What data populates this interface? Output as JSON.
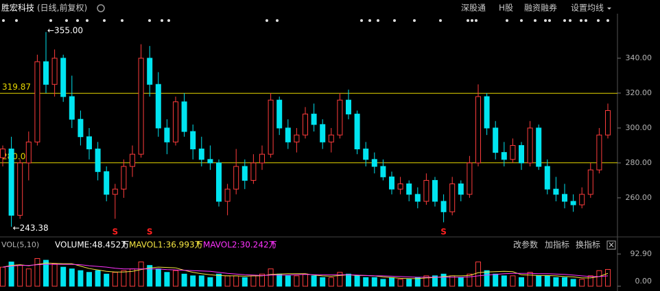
{
  "chart_data": {
    "type": "candlestick",
    "title": "胜宏科技",
    "subtitle": "(日线,前复权)",
    "menu": [
      "深股通",
      "H股",
      "融资融券",
      "设置均线"
    ],
    "open": [
      283,
      288,
      250,
      280,
      292,
      338,
      325,
      340,
      318,
      305,
      295,
      288,
      275,
      262,
      265,
      278,
      285,
      340,
      325,
      300,
      292,
      315,
      298,
      288,
      282,
      280,
      258,
      265,
      278,
      270,
      280,
      285,
      316,
      300,
      292,
      296,
      308,
      302,
      292,
      296,
      316,
      308,
      288,
      282,
      278,
      272,
      265,
      268,
      262,
      258,
      270,
      258,
      252,
      268,
      262,
      280,
      318,
      300,
      286,
      282,
      290,
      280,
      300,
      278,
      265,
      262,
      258,
      256,
      262,
      276,
      296
    ],
    "high": [
      290,
      295,
      282,
      298,
      342,
      355,
      345,
      342,
      330,
      310,
      300,
      292,
      278,
      268,
      282,
      290,
      348,
      347,
      332,
      305,
      318,
      320,
      302,
      295,
      290,
      282,
      268,
      288,
      282,
      285,
      290,
      320,
      318,
      305,
      300,
      312,
      314,
      305,
      300,
      320,
      322,
      310,
      292,
      286,
      282,
      275,
      272,
      270,
      266,
      274,
      272,
      262,
      272,
      270,
      284,
      325,
      320,
      304,
      292,
      294,
      292,
      304,
      302,
      282,
      272,
      268,
      262,
      266,
      280,
      300,
      314
    ],
    "low": [
      278,
      243.38,
      248,
      270,
      290,
      320,
      318,
      315,
      300,
      290,
      282,
      270,
      258,
      248,
      260,
      272,
      283,
      318,
      295,
      285,
      290,
      295,
      282,
      278,
      276,
      255,
      250,
      262,
      265,
      268,
      276,
      283,
      296,
      288,
      286,
      294,
      298,
      288,
      286,
      294,
      305,
      285,
      278,
      274,
      270,
      262,
      262,
      258,
      254,
      256,
      255,
      246,
      250,
      258,
      260,
      278,
      296,
      282,
      278,
      280,
      276,
      278,
      276,
      262,
      258,
      254,
      252,
      254,
      260,
      274,
      294
    ],
    "close": [
      288,
      250,
      280,
      292,
      338,
      325,
      340,
      318,
      305,
      295,
      288,
      275,
      262,
      265,
      278,
      285,
      340,
      325,
      300,
      292,
      315,
      298,
      288,
      282,
      280,
      258,
      265,
      278,
      270,
      280,
      285,
      316,
      300,
      292,
      296,
      308,
      302,
      292,
      296,
      316,
      308,
      288,
      282,
      278,
      272,
      265,
      268,
      262,
      258,
      270,
      258,
      252,
      268,
      262,
      280,
      318,
      300,
      286,
      282,
      290,
      280,
      300,
      278,
      265,
      262,
      258,
      256,
      262,
      276,
      296,
      310
    ],
    "volume": [
      55,
      70,
      60,
      50,
      80,
      75,
      65,
      55,
      50,
      45,
      40,
      45,
      35,
      40,
      45,
      50,
      70,
      60,
      50,
      40,
      45,
      35,
      30,
      30,
      25,
      35,
      30,
      30,
      25,
      30,
      35,
      50,
      35,
      30,
      30,
      35,
      30,
      25,
      25,
      40,
      35,
      30,
      25,
      25,
      20,
      25,
      20,
      20,
      25,
      30,
      30,
      35,
      30,
      25,
      35,
      70,
      45,
      35,
      30,
      30,
      25,
      40,
      30,
      30,
      25,
      25,
      20,
      20,
      30,
      45,
      48.452
    ],
    "mavol1": [
      55,
      60,
      62,
      59,
      63,
      67,
      66,
      65,
      65,
      58,
      51,
      47,
      43,
      41,
      41,
      43,
      48,
      53,
      55,
      54,
      53,
      46,
      40,
      36,
      33,
      31,
      30,
      30,
      29,
      30,
      30,
      34,
      35,
      36,
      36,
      36,
      32,
      30,
      29,
      31,
      33,
      31,
      31,
      30,
      27,
      25,
      23,
      22,
      22,
      24,
      25,
      28,
      30,
      30,
      31,
      39,
      41,
      42,
      43,
      42,
      33,
      32,
      31,
      31,
      30,
      28,
      27,
      24,
      24,
      28,
      37
    ],
    "mavol2": [
      55,
      58,
      60,
      60,
      62,
      63,
      63,
      63,
      63,
      62,
      59,
      57,
      55,
      52,
      50,
      50,
      50,
      50,
      50,
      48,
      47,
      46,
      45,
      44,
      43,
      40,
      37,
      35,
      33,
      32,
      31,
      32,
      32,
      32,
      33,
      34,
      33,
      33,
      33,
      33,
      33,
      32,
      31,
      30,
      30,
      29,
      28,
      27,
      26,
      26,
      26,
      26,
      26,
      26,
      27,
      30,
      32,
      34,
      36,
      37,
      37,
      37,
      36,
      36,
      35,
      34,
      32,
      30,
      28,
      28,
      30
    ],
    "up_color": "#ff3c3c",
    "down_color": "#00e4f0",
    "mavol1_color": "#f5e642",
    "mavol2_color": "#ff33ff",
    "ylim": [
      238,
      365.5
    ],
    "yticks": [
      {
        "value": 260,
        "label": "260.00"
      },
      {
        "value": 280,
        "label": "280.00"
      },
      {
        "value": 300,
        "label": "300.00"
      },
      {
        "value": 320,
        "label": "320.00"
      },
      {
        "value": 340,
        "label": "340.00"
      }
    ],
    "levels": [
      {
        "value": 319.87,
        "label": "319.87"
      },
      {
        "value": 280.06,
        "label": "280.06"
      }
    ],
    "high_label": "←355.00",
    "low_label": "←243.38",
    "signal_label": "S",
    "signals": [
      13,
      17,
      51
    ],
    "volume_panel": {
      "indicator": "VOL(5,10)",
      "volume": "VOLUME:48.452万",
      "mavol1": "MAVOL1:36.993万",
      "mavol2": "MAVOL2:30.242万",
      "arrow": "↑",
      "buttons": [
        "改参数",
        "加指标",
        "换指标"
      ],
      "close": "×"
    },
    "vlim": [
      0,
      92.9
    ],
    "vticks": [
      {
        "value": 92.9,
        "label": "92.90"
      },
      {
        "value": 0,
        "label": "0.00"
      }
    ]
  }
}
